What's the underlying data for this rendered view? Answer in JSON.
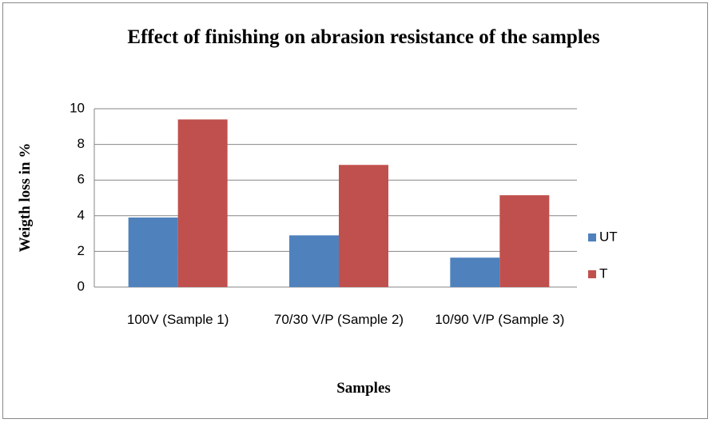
{
  "chart_data": {
    "type": "bar",
    "title": "Effect of finishing on abrasion resistance of the samples",
    "xlabel": "Samples",
    "ylabel": "Weigth loss in %",
    "categories": [
      "100V (Sample 1)",
      "70/30 V/P (Sample 2)",
      "10/90 V/P (Sample 3)"
    ],
    "series": [
      {
        "name": "UT",
        "color": "#4f81bd",
        "values": [
          3.9,
          2.9,
          1.65
        ]
      },
      {
        "name": "T",
        "color": "#c0504d",
        "values": [
          9.4,
          6.85,
          5.15
        ]
      }
    ],
    "ylim": [
      0,
      10
    ],
    "yticks": [
      0,
      2,
      4,
      6,
      8,
      10
    ],
    "grid": true,
    "legend": "right"
  }
}
